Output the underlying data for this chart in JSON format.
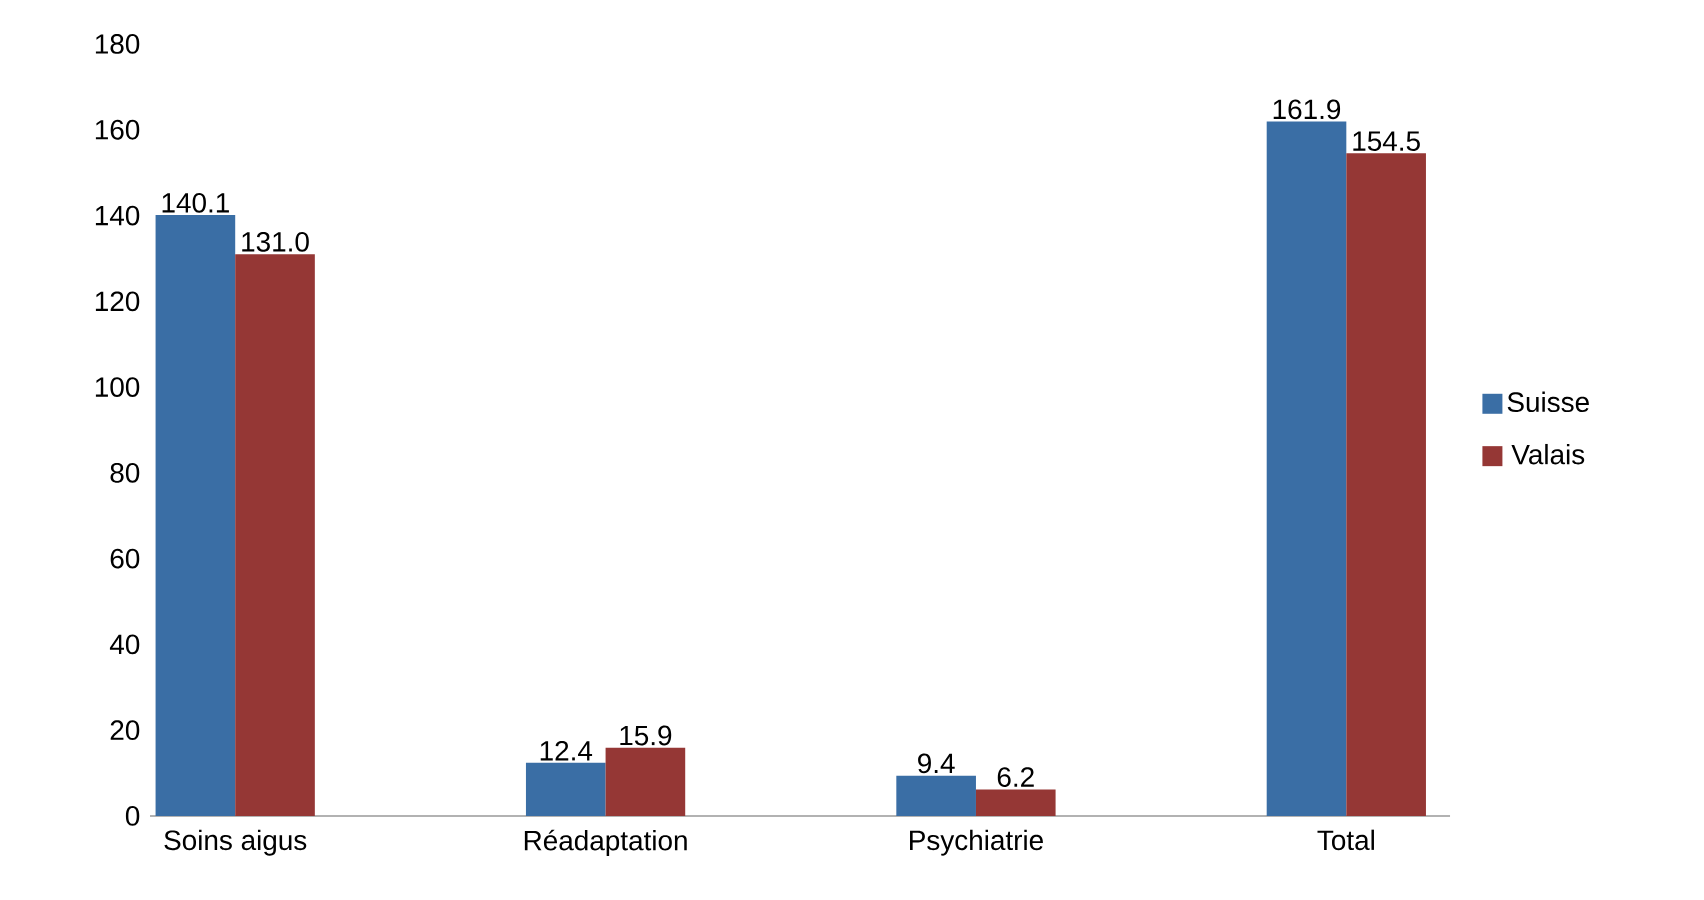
{
  "chart_data": {
    "type": "bar",
    "categories": [
      "Soins aigus",
      "Réadaptation",
      "Psychiatrie",
      "Total"
    ],
    "series": [
      {
        "name": "Suisse",
        "color": "#3a6ea5",
        "values": [
          140.1,
          12.4,
          9.4,
          161.9
        ],
        "value_labels": [
          "140.1",
          "12.4",
          "9.4",
          "161.9"
        ]
      },
      {
        "name": "Valais",
        "color": "#953735",
        "values": [
          131.0,
          15.9,
          6.2,
          154.5
        ],
        "value_labels": [
          "131.0",
          "15.9",
          "6.2",
          "154.5"
        ]
      }
    ],
    "ylim": [
      0,
      180
    ],
    "yticks": [
      0,
      20,
      40,
      60,
      80,
      100,
      120,
      140,
      160,
      180
    ],
    "legend": "right"
  }
}
